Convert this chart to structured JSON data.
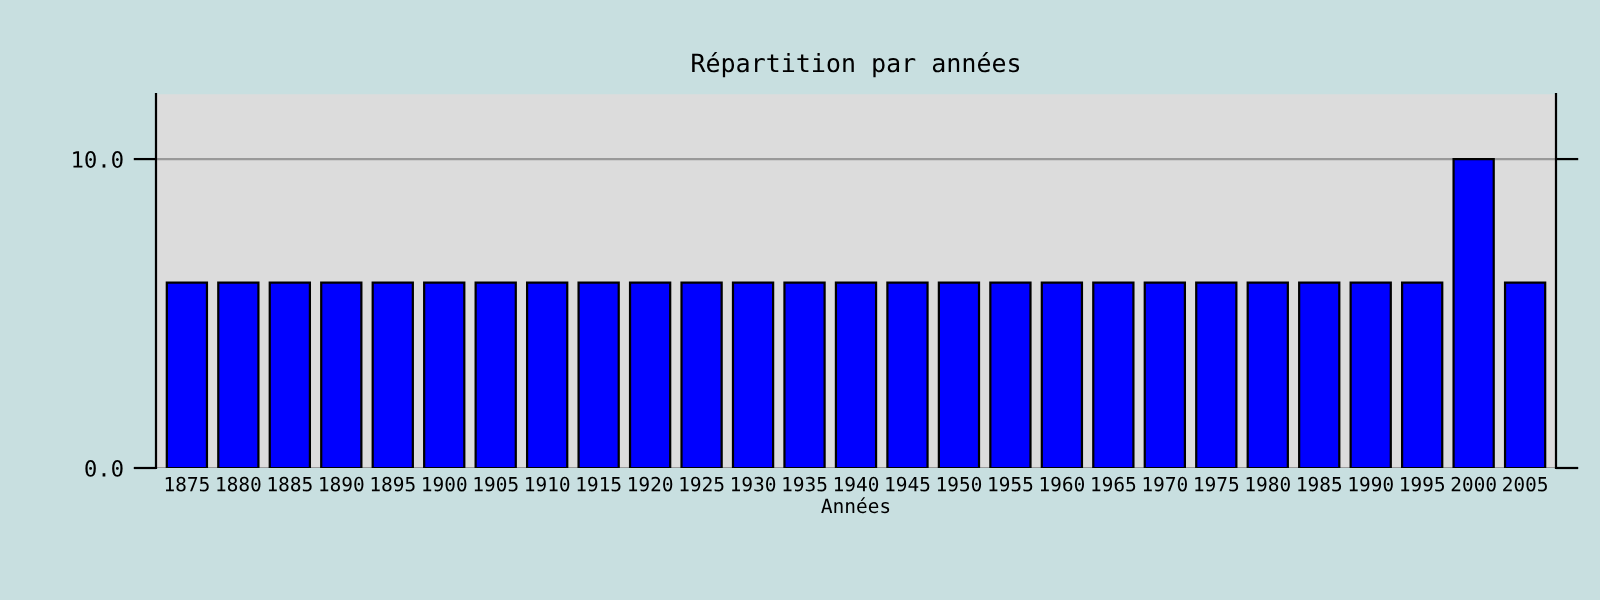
{
  "chart_data": {
    "type": "bar",
    "title": "Répartition par années",
    "xlabel": "Années",
    "categories": [
      "1875",
      "1880",
      "1885",
      "1890",
      "1895",
      "1900",
      "1905",
      "1910",
      "1915",
      "1920",
      "1925",
      "1930",
      "1935",
      "1940",
      "1945",
      "1950",
      "1955",
      "1960",
      "1965",
      "1970",
      "1975",
      "1980",
      "1985",
      "1990",
      "1995",
      "2000",
      "2005"
    ],
    "values": [
      6,
      6,
      6,
      6,
      6,
      6,
      6,
      6,
      6,
      6,
      6,
      6,
      6,
      6,
      6,
      6,
      6,
      6,
      6,
      6,
      6,
      6,
      6,
      6,
      6,
      10,
      6
    ],
    "color": "#0000ff",
    "ylim": [
      0,
      12.1
    ],
    "yticks": [
      {
        "value": 0,
        "label": "0.0"
      },
      {
        "value": 10,
        "label": "10.0"
      }
    ],
    "grid": "y"
  }
}
